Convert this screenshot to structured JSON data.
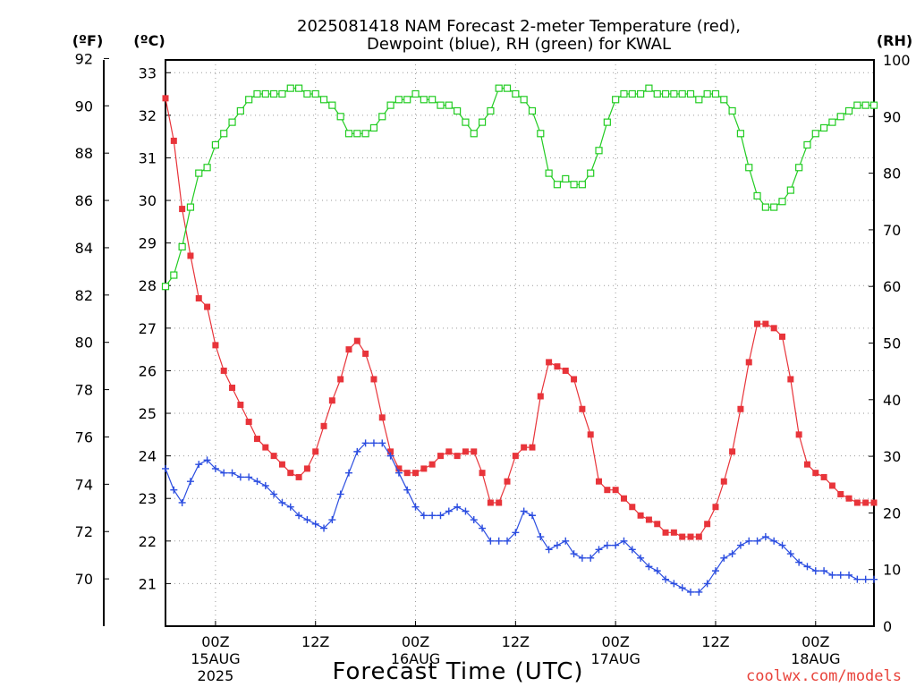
{
  "chart_data": {
    "type": "line",
    "title_line1": "2025081418 NAM Forecast 2-meter Temperature (red),",
    "title_line2": "Dewpoint (blue), RH (green) for KWAL",
    "xlabel": "Forecast Time (UTC)",
    "credit": "coolwx.com/models",
    "units": {
      "left_f": "(ºF)",
      "left_c": "(ºC)",
      "right_rh": "(RH)"
    },
    "x_range_hours_from_init": [
      0,
      85
    ],
    "x_ticks": [
      {
        "h": 6,
        "label": "00Z",
        "label2": "15AUG",
        "label3": "2025"
      },
      {
        "h": 18,
        "label": "12Z"
      },
      {
        "h": 30,
        "label": "00Z",
        "label2": "16AUG"
      },
      {
        "h": 42,
        "label": "12Z"
      },
      {
        "h": 54,
        "label": "00Z",
        "label2": "17AUG"
      },
      {
        "h": 66,
        "label": "12Z"
      },
      {
        "h": 78,
        "label": "00Z",
        "label2": "18AUG"
      }
    ],
    "celsius_axis": {
      "range": [
        20.0,
        33.3
      ],
      "ticks": [
        21,
        22,
        23,
        24,
        25,
        26,
        27,
        28,
        29,
        30,
        31,
        32,
        33
      ]
    },
    "fahrenheit_axis": {
      "ticks": [
        70,
        72,
        74,
        76,
        78,
        80,
        82,
        84,
        86,
        88,
        90,
        92
      ]
    },
    "rh_axis": {
      "range": [
        0,
        100
      ],
      "ticks": [
        0,
        10,
        20,
        30,
        40,
        50,
        60,
        70,
        80,
        90,
        100
      ]
    },
    "grid": true,
    "colors": {
      "temperature": "#e8343a",
      "dewpoint": "#2b4de0",
      "rh": "#22cc22",
      "axis": "#000000",
      "credit": "#e8433b"
    },
    "series": [
      {
        "name": "Temperature",
        "axis": "celsius",
        "marker": "filled-square",
        "x": [
          0,
          1,
          2,
          3,
          4,
          5,
          6,
          7,
          8,
          9,
          10,
          11,
          12,
          13,
          14,
          15,
          16,
          17,
          18,
          19,
          20,
          21,
          22,
          23,
          24,
          25,
          26,
          27,
          28,
          29,
          30,
          31,
          32,
          33,
          34,
          35,
          36,
          37,
          38,
          39,
          40,
          41,
          42,
          43,
          44,
          45,
          46,
          47,
          48,
          49,
          50,
          51,
          52,
          53,
          54,
          55,
          56,
          57,
          58,
          59,
          60,
          61,
          62,
          63,
          64,
          65,
          66,
          67,
          68,
          69,
          70,
          71,
          72,
          73,
          74,
          75,
          76,
          77,
          78,
          79,
          80,
          81,
          82,
          83,
          84,
          85
        ],
        "values": [
          32.4,
          31.4,
          29.8,
          28.7,
          27.7,
          27.5,
          26.6,
          26.0,
          25.6,
          25.2,
          24.8,
          24.4,
          24.2,
          24.0,
          23.8,
          23.6,
          23.5,
          23.7,
          24.1,
          24.7,
          25.3,
          25.8,
          26.5,
          26.7,
          26.4,
          25.8,
          24.9,
          24.1,
          23.7,
          23.6,
          23.6,
          23.7,
          23.8,
          24.0,
          24.1,
          24.0,
          24.1,
          24.1,
          23.6,
          22.9,
          22.9,
          23.4,
          24.0,
          24.2,
          24.2,
          25.4,
          26.2,
          26.1,
          26.0,
          25.8,
          25.1,
          24.5,
          23.4,
          23.2,
          23.2,
          23.0,
          22.8,
          22.6,
          22.5,
          22.4,
          22.2,
          22.2,
          22.1,
          22.1,
          22.1,
          22.4,
          22.8,
          23.4,
          24.1,
          25.1,
          26.2,
          27.1,
          27.1,
          27.0,
          26.8,
          25.8,
          24.5,
          23.8,
          23.6,
          23.5,
          23.3,
          23.1,
          23.0,
          22.9,
          22.9,
          22.9
        ]
      },
      {
        "name": "Dewpoint",
        "axis": "celsius",
        "marker": "plus",
        "x": [
          0,
          1,
          2,
          3,
          4,
          5,
          6,
          7,
          8,
          9,
          10,
          11,
          12,
          13,
          14,
          15,
          16,
          17,
          18,
          19,
          20,
          21,
          22,
          23,
          24,
          25,
          26,
          27,
          28,
          29,
          30,
          31,
          32,
          33,
          34,
          35,
          36,
          37,
          38,
          39,
          40,
          41,
          42,
          43,
          44,
          45,
          46,
          47,
          48,
          49,
          50,
          51,
          52,
          53,
          54,
          55,
          56,
          57,
          58,
          59,
          60,
          61,
          62,
          63,
          64,
          65,
          66,
          67,
          68,
          69,
          70,
          71,
          72,
          73,
          74,
          75,
          76,
          77,
          78,
          79,
          80,
          81,
          82,
          83,
          84,
          85
        ],
        "values": [
          23.7,
          23.2,
          22.9,
          23.4,
          23.8,
          23.9,
          23.7,
          23.6,
          23.6,
          23.5,
          23.5,
          23.4,
          23.3,
          23.1,
          22.9,
          22.8,
          22.6,
          22.5,
          22.4,
          22.3,
          22.5,
          23.1,
          23.6,
          24.1,
          24.3,
          24.3,
          24.3,
          24.0,
          23.6,
          23.2,
          22.8,
          22.6,
          22.6,
          22.6,
          22.7,
          22.8,
          22.7,
          22.5,
          22.3,
          22.0,
          22.0,
          22.0,
          22.2,
          22.7,
          22.6,
          22.1,
          21.8,
          21.9,
          22.0,
          21.7,
          21.6,
          21.6,
          21.8,
          21.9,
          21.9,
          22.0,
          21.8,
          21.6,
          21.4,
          21.3,
          21.1,
          21.0,
          20.9,
          20.8,
          20.8,
          21.0,
          21.3,
          21.6,
          21.7,
          21.9,
          22.0,
          22.0,
          22.1,
          22.0,
          21.9,
          21.7,
          21.5,
          21.4,
          21.3,
          21.3,
          21.2,
          21.2,
          21.2,
          21.1,
          21.1,
          21.1
        ]
      },
      {
        "name": "RH",
        "axis": "rh",
        "marker": "open-square",
        "x": [
          0,
          1,
          2,
          3,
          4,
          5,
          6,
          7,
          8,
          9,
          10,
          11,
          12,
          13,
          14,
          15,
          16,
          17,
          18,
          19,
          20,
          21,
          22,
          23,
          24,
          25,
          26,
          27,
          28,
          29,
          30,
          31,
          32,
          33,
          34,
          35,
          36,
          37,
          38,
          39,
          40,
          41,
          42,
          43,
          44,
          45,
          46,
          47,
          48,
          49,
          50,
          51,
          52,
          53,
          54,
          55,
          56,
          57,
          58,
          59,
          60,
          61,
          62,
          63,
          64,
          65,
          66,
          67,
          68,
          69,
          70,
          71,
          72,
          73,
          74,
          75,
          76,
          77,
          78,
          79,
          80,
          81,
          82,
          83,
          84,
          85
        ],
        "values": [
          60,
          62,
          67,
          74,
          80,
          81,
          85,
          87,
          89,
          91,
          93,
          94,
          94,
          94,
          94,
          95,
          95,
          94,
          94,
          93,
          92,
          90,
          87,
          87,
          87,
          88,
          90,
          92,
          93,
          93,
          94,
          93,
          93,
          92,
          92,
          91,
          89,
          87,
          89,
          91,
          95,
          95,
          94,
          93,
          91,
          87,
          80,
          78,
          79,
          78,
          78,
          80,
          84,
          89,
          93,
          94,
          94,
          94,
          95,
          94,
          94,
          94,
          94,
          94,
          93,
          94,
          94,
          93,
          91,
          87,
          81,
          76,
          74,
          74,
          75,
          77,
          81,
          85,
          87,
          88,
          89,
          90,
          91,
          92,
          92,
          92
        ]
      }
    ]
  }
}
